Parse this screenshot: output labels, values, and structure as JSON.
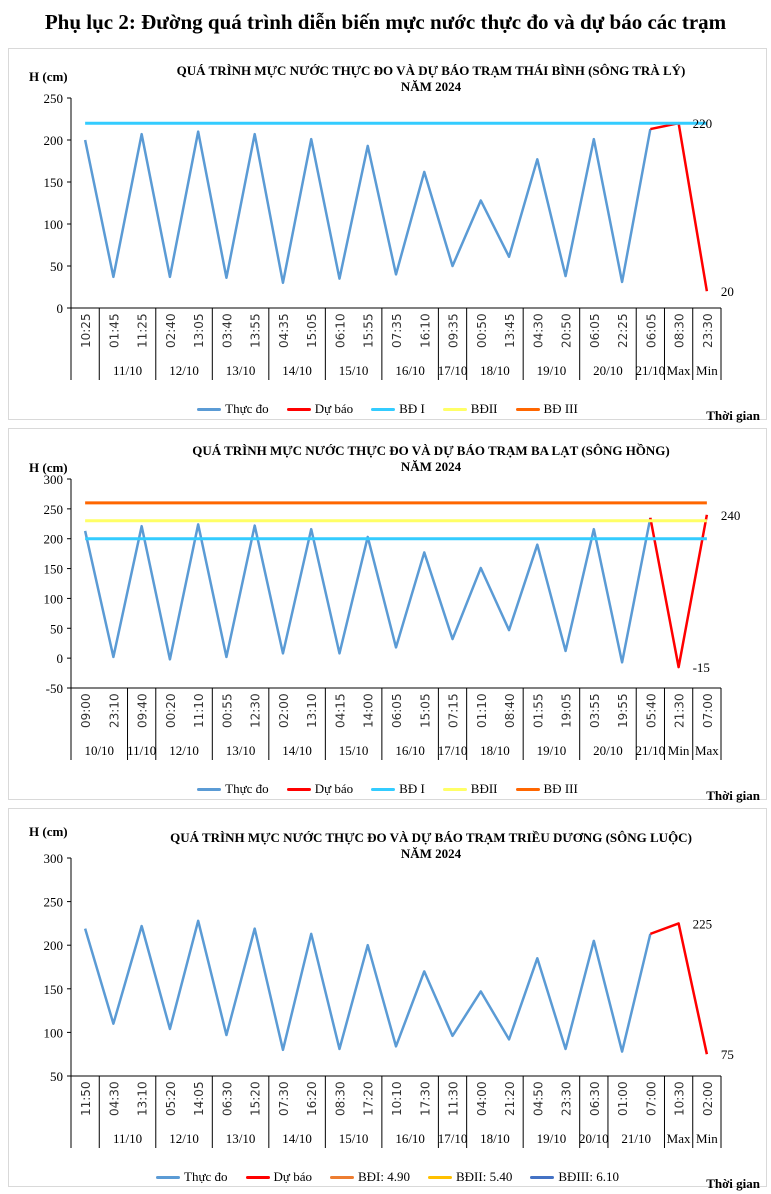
{
  "page_title": "Phụ lục 2: Đường quá trình diễn biến mực nước thực đo và dự báo các trạm",
  "chart_data": [
    {
      "type": "line",
      "title": [
        "QUÁ TRÌNH MỰC NƯỚC THỰC ĐO VÀ DỰ BÁO TRẠM THÁI BÌNH (SÔNG TRÀ LÝ)",
        "NĂM 2024"
      ],
      "ylabel": "H (cm)",
      "xlabel": "Thời gian",
      "ylim": [
        0,
        250
      ],
      "ytick_step": 50,
      "grid": false,
      "categories": [
        "10:25",
        "01:45",
        "11:25",
        "02:40",
        "13:05",
        "03:40",
        "13:55",
        "04:35",
        "15:05",
        "06:10",
        "15:55",
        "07:35",
        "16:10",
        "09:35",
        "00:50",
        "13:45",
        "04:30",
        "20:50",
        "06:05",
        "22:25",
        "06:05",
        "08:30",
        "23:30"
      ],
      "groups": [
        {
          "label": "",
          "span": 1
        },
        {
          "label": "11/10",
          "span": 2
        },
        {
          "label": "12/10",
          "span": 2
        },
        {
          "label": "13/10",
          "span": 2
        },
        {
          "label": "14/10",
          "span": 2
        },
        {
          "label": "15/10",
          "span": 2
        },
        {
          "label": "16/10",
          "span": 2
        },
        {
          "label": "17/10",
          "span": 1
        },
        {
          "label": "18/10",
          "span": 2
        },
        {
          "label": "19/10",
          "span": 2
        },
        {
          "label": "20/10",
          "span": 2
        },
        {
          "label": "21/10",
          "span": 1
        },
        {
          "label": "Max",
          "span": 1
        },
        {
          "label": "Min",
          "span": 1
        }
      ],
      "series": [
        {
          "name": "Thực đo",
          "color": "#5b9bd5",
          "values": [
            200,
            37,
            207,
            37,
            210,
            36,
            207,
            30,
            201,
            35,
            193,
            40,
            162,
            50,
            128,
            61,
            177,
            38,
            201,
            31,
            213,
            null,
            null
          ]
        },
        {
          "name": "Dự báo",
          "color": "#ff0000",
          "values": [
            null,
            null,
            null,
            null,
            null,
            null,
            null,
            null,
            null,
            null,
            null,
            null,
            null,
            null,
            null,
            null,
            null,
            null,
            null,
            null,
            213,
            220,
            20
          ]
        },
        {
          "name": "BĐ I",
          "color": "#33ccff",
          "level": 220
        },
        {
          "name": "BĐII",
          "color": "#ffff66"
        },
        {
          "name": "BĐ III",
          "color": "#ff6600"
        }
      ],
      "annotations": [
        {
          "text": "220",
          "index": 21,
          "value": 220
        },
        {
          "text": "20",
          "index": 22,
          "value": 20
        }
      ]
    },
    {
      "type": "line",
      "title": [
        "QUÁ TRÌNH MỰC NƯỚC THỰC ĐO VÀ DỰ BÁO TRẠM BA LẠT (SÔNG HỒNG)",
        "NĂM 2024"
      ],
      "ylabel": "H (cm)",
      "xlabel": "Thời gian",
      "ylim": [
        -50,
        300
      ],
      "ytick_step": 50,
      "grid": false,
      "categories": [
        "09:00",
        "23:10",
        "09:40",
        "00:20",
        "11:10",
        "00:55",
        "12:30",
        "02:00",
        "13:10",
        "04:15",
        "14:00",
        "06:05",
        "15:05",
        "07:15",
        "01:10",
        "08:40",
        "01:55",
        "19:05",
        "03:55",
        "19:55",
        "05:40",
        "21:30",
        "07:00"
      ],
      "groups": [
        {
          "label": "10/10",
          "span": 2
        },
        {
          "label": "11/10",
          "span": 1
        },
        {
          "label": "12/10",
          "span": 2
        },
        {
          "label": "13/10",
          "span": 2
        },
        {
          "label": "14/10",
          "span": 2
        },
        {
          "label": "15/10",
          "span": 2
        },
        {
          "label": "16/10",
          "span": 2
        },
        {
          "label": "17/10",
          "span": 1
        },
        {
          "label": "18/10",
          "span": 2
        },
        {
          "label": "19/10",
          "span": 2
        },
        {
          "label": "20/10",
          "span": 2
        },
        {
          "label": "21/10",
          "span": 1
        },
        {
          "label": "Min",
          "span": 1
        },
        {
          "label": "Max",
          "span": 1
        }
      ],
      "series": [
        {
          "name": "Thực đo",
          "color": "#5b9bd5",
          "values": [
            213,
            2,
            221,
            -2,
            224,
            2,
            222,
            8,
            216,
            8,
            203,
            18,
            177,
            32,
            151,
            47,
            190,
            12,
            216,
            -7,
            235,
            null,
            null
          ]
        },
        {
          "name": "Dự báo",
          "color": "#ff0000",
          "values": [
            null,
            null,
            null,
            null,
            null,
            null,
            null,
            null,
            null,
            null,
            null,
            null,
            null,
            null,
            null,
            null,
            null,
            null,
            null,
            null,
            235,
            -15,
            240
          ]
        },
        {
          "name": "BĐ I",
          "color": "#33ccff",
          "level": 200
        },
        {
          "name": "BĐII",
          "color": "#ffff66",
          "level": 230
        },
        {
          "name": "BĐ III",
          "color": "#ff6600",
          "level": 260
        }
      ],
      "annotations": [
        {
          "text": "240",
          "index": 22,
          "value": 240
        },
        {
          "text": "-15",
          "index": 21,
          "value": -15
        }
      ]
    },
    {
      "type": "line",
      "title": [
        "QUÁ TRÌNH MỰC NƯỚC THỰC ĐO VÀ DỰ BÁO TRẠM TRIỀU DƯƠNG (SÔNG LUỘC)",
        "NĂM 2024"
      ],
      "ylabel": "H (cm)",
      "xlabel": "Thời gian",
      "ylim": [
        50,
        300
      ],
      "ytick_step": 50,
      "grid": false,
      "categories": [
        "11:50",
        "04:30",
        "13:10",
        "05:20",
        "14:05",
        "06:30",
        "15:20",
        "07:30",
        "16:20",
        "08:30",
        "17:20",
        "10:10",
        "17:30",
        "11:30",
        "04:00",
        "21:20",
        "04:50",
        "23:30",
        "06:30",
        "01:00",
        "07:00",
        "10:30",
        "02:00"
      ],
      "groups": [
        {
          "label": "",
          "span": 1
        },
        {
          "label": "11/10",
          "span": 2
        },
        {
          "label": "12/10",
          "span": 2
        },
        {
          "label": "13/10",
          "span": 2
        },
        {
          "label": "14/10",
          "span": 2
        },
        {
          "label": "15/10",
          "span": 2
        },
        {
          "label": "16/10",
          "span": 2
        },
        {
          "label": "17/10",
          "span": 1
        },
        {
          "label": "18/10",
          "span": 2
        },
        {
          "label": "19/10",
          "span": 2
        },
        {
          "label": "20/10",
          "span": 1
        },
        {
          "label": "21/10",
          "span": 2
        },
        {
          "label": "Max",
          "span": 1
        },
        {
          "label": "Min",
          "span": 1
        }
      ],
      "series": [
        {
          "name": "Thực đo",
          "color": "#5b9bd5",
          "values": [
            219,
            110,
            222,
            104,
            228,
            97,
            219,
            80,
            213,
            81,
            200,
            84,
            170,
            96,
            147,
            92,
            185,
            81,
            205,
            78,
            213,
            null,
            null
          ]
        },
        {
          "name": "Dự báo",
          "color": "#ff0000",
          "values": [
            null,
            null,
            null,
            null,
            null,
            null,
            null,
            null,
            null,
            null,
            null,
            null,
            null,
            null,
            null,
            null,
            null,
            null,
            null,
            null,
            213,
            225,
            75
          ]
        },
        {
          "name": "BĐI: 4.90",
          "color": "#ed7d31"
        },
        {
          "name": "BĐII: 5.40",
          "color": "#ffc000"
        },
        {
          "name": "BĐIII: 6.10",
          "color": "#4472c4"
        }
      ],
      "annotations": [
        {
          "text": "225",
          "index": 21,
          "value": 225
        },
        {
          "text": "75",
          "index": 22,
          "value": 75
        }
      ]
    }
  ]
}
